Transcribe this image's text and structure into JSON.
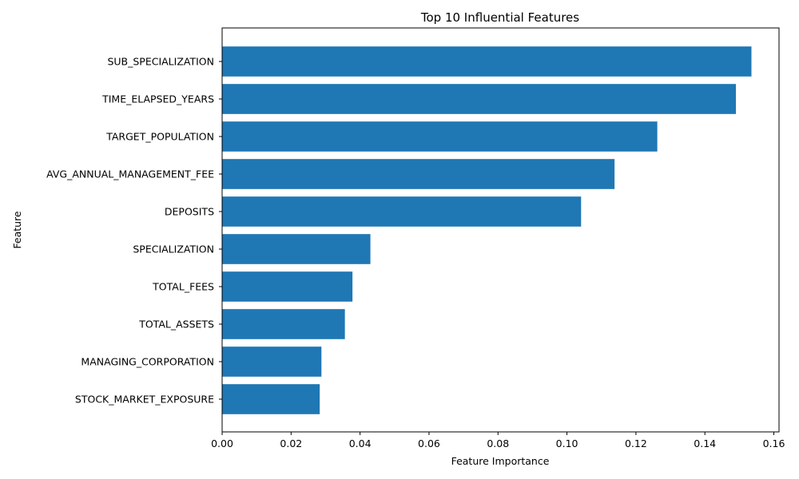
{
  "chart_data": {
    "type": "bar",
    "orientation": "horizontal",
    "title": "Top 10 Influential Features",
    "xlabel": "Feature Importance",
    "ylabel": "Feature",
    "categories": [
      "SUB_SPECIALIZATION",
      "TIME_ELAPSED_YEARS",
      "TARGET_POPULATION",
      "AVG_ANNUAL_MANAGEMENT_FEE",
      "DEPOSITS",
      "SPECIALIZATION",
      "TOTAL_FEES",
      "TOTAL_ASSETS",
      "MANAGING_CORPORATION",
      "STOCK_MARKET_EXPOSURE"
    ],
    "values": [
      0.1535,
      0.149,
      0.1262,
      0.1138,
      0.1041,
      0.043,
      0.0378,
      0.0356,
      0.0288,
      0.0283
    ],
    "xlim": [
      0,
      0.1615
    ],
    "xticks": [
      0.0,
      0.02,
      0.04,
      0.06,
      0.08,
      0.1,
      0.12,
      0.14,
      0.16
    ],
    "xtick_labels": [
      "0.00",
      "0.02",
      "0.04",
      "0.06",
      "0.08",
      "0.10",
      "0.12",
      "0.14",
      "0.16"
    ],
    "bar_color": "#1f77b4",
    "grid": false,
    "legend": false
  }
}
